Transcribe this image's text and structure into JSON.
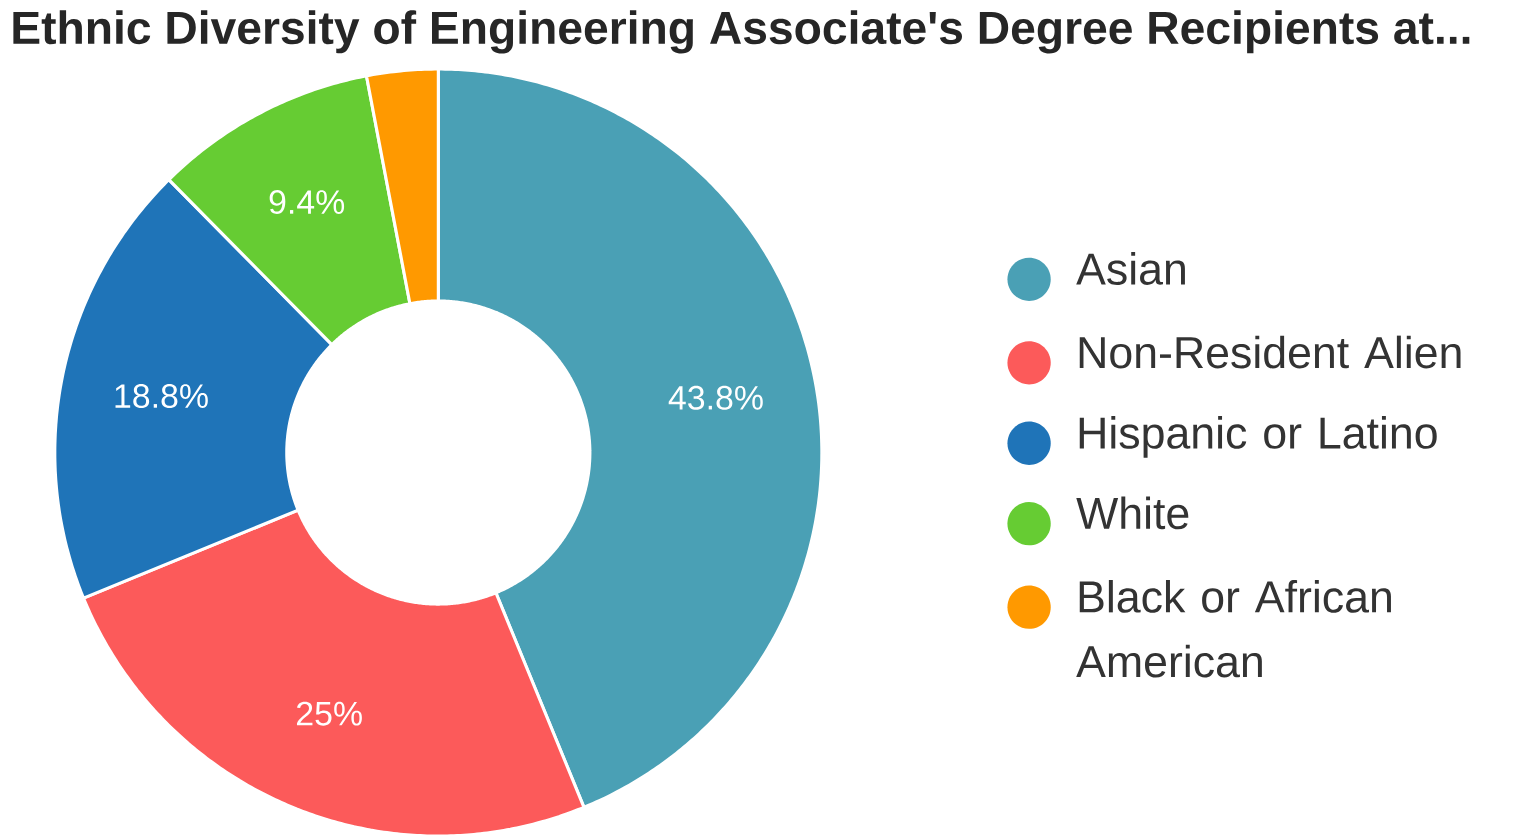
{
  "chart_data": {
    "type": "donut",
    "title": "Ethnic Diversity of Engineering Associate's Degree Recipients at...",
    "categories": [
      "Asian",
      "Non-Resident Alien",
      "Hispanic or Latino",
      "White",
      "Black or African American"
    ],
    "values": [
      43.8,
      25,
      18.8,
      9.4,
      3.0
    ],
    "colors": [
      "#4aa0b5",
      "#fc5a5a",
      "#1f74b8",
      "#66cc33",
      "#ff9900"
    ],
    "value_labels": [
      "43.8%",
      "25%",
      "18.8%",
      "9.4%",
      null
    ],
    "legend": "right"
  }
}
